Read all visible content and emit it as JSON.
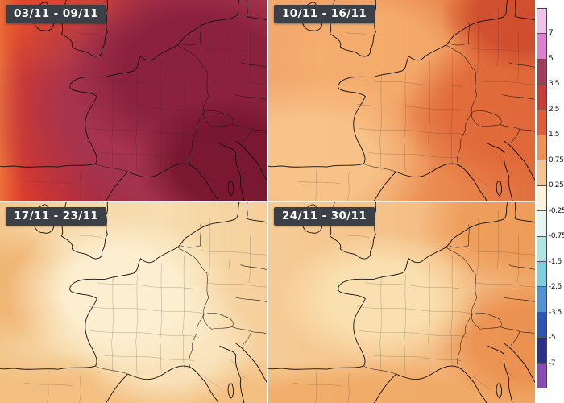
{
  "panels": [
    {
      "label": "03/11 - 09/11"
    },
    {
      "label": "10/11 - 16/11"
    },
    {
      "label": "17/11 - 23/11"
    },
    {
      "label": "24/11 - 30/11"
    }
  ],
  "colorbar": {
    "tick_labels": [
      "7",
      "5",
      "3.5",
      "2.5",
      "1.5",
      "0.75",
      "0.25",
      "-0.25",
      "-0.75",
      "-1.5",
      "-2.5",
      "-3.5",
      "-5",
      "-7"
    ],
    "band_colors": [
      "#f0c2ec",
      "#dd7ed0",
      "#a23a5a",
      "#c93a38",
      "#e25c39",
      "#ef9055",
      "#f6c493",
      "#fdf3dc",
      "#e6f6f2",
      "#b0e5e3",
      "#7ccfe3",
      "#4f93d6",
      "#3054b6",
      "#2d2e8e",
      "#8a4ab6"
    ]
  }
}
